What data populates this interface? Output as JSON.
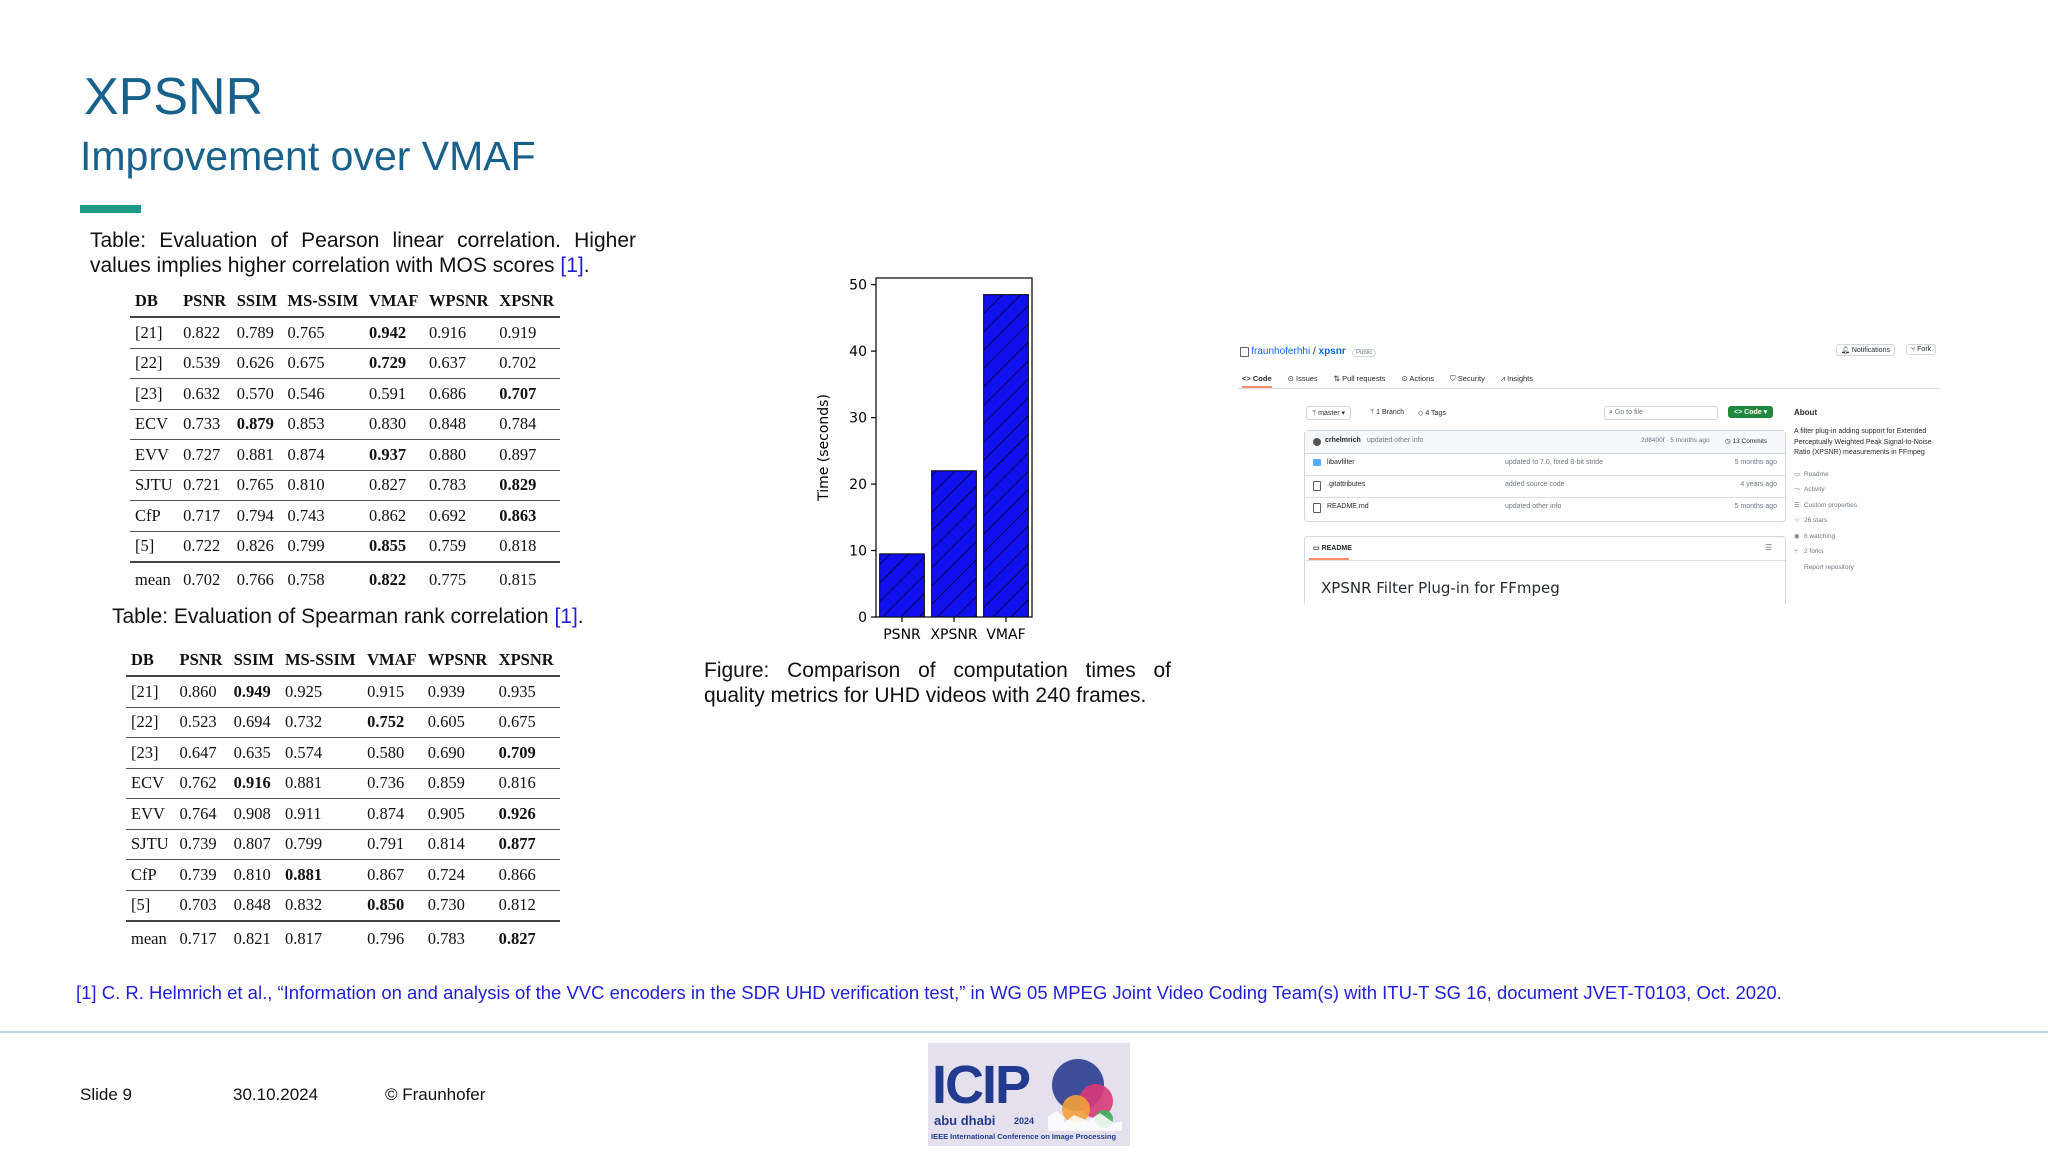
{
  "slide": {
    "title": "XPSNR",
    "subtitle": "Improvement over VMAF",
    "slide_number": "Slide 9",
    "date": "30.10.2024",
    "copyright": "© Fraunhofer",
    "accent_color": "#1d9a85",
    "title_color": "#17618a"
  },
  "table1": {
    "caption": "Table: Evaluation of Pearson linear correlation.  Higher values implies higher correlation with MOS scores",
    "ref": "[1]",
    "period": ".",
    "headers": [
      "DB",
      "PSNR",
      "SSIM",
      "MS-SSIM",
      "VMAF",
      "WPSNR",
      "XPSNR"
    ],
    "rows": [
      {
        "cells": [
          "[21]",
          "0.822",
          "0.789",
          "0.765",
          "0.942",
          "0.916",
          "0.919"
        ],
        "bold": 4
      },
      {
        "cells": [
          "[22]",
          "0.539",
          "0.626",
          "0.675",
          "0.729",
          "0.637",
          "0.702"
        ],
        "bold": 4
      },
      {
        "cells": [
          "[23]",
          "0.632",
          "0.570",
          "0.546",
          "0.591",
          "0.686",
          "0.707"
        ],
        "bold": 6
      },
      {
        "cells": [
          "ECV",
          "0.733",
          "0.879",
          "0.853",
          "0.830",
          "0.848",
          "0.784"
        ],
        "bold": 2
      },
      {
        "cells": [
          "EVV",
          "0.727",
          "0.881",
          "0.874",
          "0.937",
          "0.880",
          "0.897"
        ],
        "bold": 4
      },
      {
        "cells": [
          "SJTU",
          "0.721",
          "0.765",
          "0.810",
          "0.827",
          "0.783",
          "0.829"
        ],
        "bold": 6
      },
      {
        "cells": [
          "CfP",
          "0.717",
          "0.794",
          "0.743",
          "0.862",
          "0.692",
          "0.863"
        ],
        "bold": 6
      },
      {
        "cells": [
          "[5]",
          "0.722",
          "0.826",
          "0.799",
          "0.855",
          "0.759",
          "0.818"
        ],
        "bold": 4
      }
    ],
    "mean": {
      "cells": [
        "mean",
        "0.702",
        "0.766",
        "0.758",
        "0.822",
        "0.775",
        "0.815"
      ],
      "bold": 4
    }
  },
  "table2": {
    "caption": "Table: Evaluation of Spearman rank correlation",
    "ref": "[1]",
    "period": ".",
    "headers": [
      "DB",
      "PSNR",
      "SSIM",
      "MS-SSIM",
      "VMAF",
      "WPSNR",
      "XPSNR"
    ],
    "rows": [
      {
        "cells": [
          "[21]",
          "0.860",
          "0.949",
          "0.925",
          "0.915",
          "0.939",
          "0.935"
        ],
        "bold": 2
      },
      {
        "cells": [
          "[22]",
          "0.523",
          "0.694",
          "0.732",
          "0.752",
          "0.605",
          "0.675"
        ],
        "bold": 4
      },
      {
        "cells": [
          "[23]",
          "0.647",
          "0.635",
          "0.574",
          "0.580",
          "0.690",
          "0.709"
        ],
        "bold": 6
      },
      {
        "cells": [
          "ECV",
          "0.762",
          "0.916",
          "0.881",
          "0.736",
          "0.859",
          "0.816"
        ],
        "bold": 2
      },
      {
        "cells": [
          "EVV",
          "0.764",
          "0.908",
          "0.911",
          "0.874",
          "0.905",
          "0.926"
        ],
        "bold": 6
      },
      {
        "cells": [
          "SJTU",
          "0.739",
          "0.807",
          "0.799",
          "0.791",
          "0.814",
          "0.877"
        ],
        "bold": 6
      },
      {
        "cells": [
          "CfP",
          "0.739",
          "0.810",
          "0.881",
          "0.867",
          "0.724",
          "0.866"
        ],
        "bold": 3
      },
      {
        "cells": [
          "[5]",
          "0.703",
          "0.848",
          "0.832",
          "0.850",
          "0.730",
          "0.812"
        ],
        "bold": 4
      }
    ],
    "mean": {
      "cells": [
        "mean",
        "0.717",
        "0.821",
        "0.817",
        "0.796",
        "0.783",
        "0.827"
      ],
      "bold": 6
    }
  },
  "chart_data": {
    "type": "bar",
    "categories": [
      "PSNR",
      "XPSNR",
      "VMAF"
    ],
    "values": [
      9.5,
      22,
      48.5
    ],
    "ylabel": "Time (seconds)",
    "xlabel": "",
    "title": "",
    "ylim": [
      0,
      51
    ],
    "yticks": [
      0,
      10,
      20,
      30,
      40,
      50
    ],
    "bar_color": "#1010ee",
    "hatch": "diagonal",
    "grid": false
  },
  "figure_caption": "Figure:  Comparison  of  computation  times  of quality metrics for UHD videos with 240 frames.",
  "github": {
    "owner": "fraunhoferhhi",
    "sep": " / ",
    "repo": "xpsnr",
    "visibility": "Public",
    "notifications": "Notifications",
    "fork": "Fork",
    "tabs": [
      "Code",
      "Issues",
      "Pull requests",
      "Actions",
      "Security",
      "Insights"
    ],
    "branch": "master",
    "branches": "1 Branch",
    "tags": "4 Tags",
    "goto": "Go to file",
    "code_btn": "Code",
    "commit_user": "crhelmrich",
    "commit_msg": "updated other info",
    "commit_meta": "2d8400f · 5 months ago",
    "commits": "13 Commits",
    "files": [
      {
        "name": "libavfilter",
        "msg": "updated to 7.0, fixed 8-bit stride",
        "time": "5 months ago",
        "type": "folder"
      },
      {
        "name": ".gitattributes",
        "msg": "added source code",
        "time": "4 years ago",
        "type": "file"
      },
      {
        "name": "README.md",
        "msg": "updated other info",
        "time": "5 months ago",
        "type": "file"
      }
    ],
    "readme_tab": "README",
    "readme_title": "XPSNR Filter Plug-in for FFmpeg",
    "about_title": "About",
    "about_text": "A filter plug-in adding support for Extended Perceptually Weighted Peak Signal-to-Noise Ratio (XPSNR) measurements in FFmpeg",
    "about_items": [
      "Readme",
      "Activity",
      "Custom properties",
      "26 stars",
      "6 watching",
      "2 forks",
      "Report repository"
    ],
    "accent_green": "#1f883d"
  },
  "reference": "[1] C. R. Helmrich et al., “Information on and analysis of the VVC encoders in the SDR UHD verification test,” in WG 05 MPEG Joint Video Coding Team(s) with ITU-T SG 16, document JVET-T0103, Oct. 2020.",
  "logo": {
    "text": "ICIP",
    "city": "abu dhabi",
    "year": "2024",
    "tagline": "IEEE International Conference on Image Processing"
  }
}
